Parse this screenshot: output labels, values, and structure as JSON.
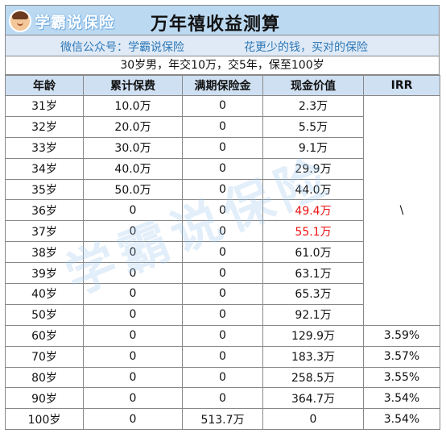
{
  "header": {
    "logo_text": "学霸说保险",
    "title": "万年禧收益测算",
    "subtitle_left": "微信公众号：学霸说保险",
    "subtitle_right": "花更少的钱，买对的保险",
    "conditions": "30岁男，年交10万，交5年，保至100岁"
  },
  "table": {
    "headers": [
      "年龄",
      "累计保费",
      "满期保险金",
      "现金价值",
      "IRR"
    ],
    "irr_merged_note": "\\",
    "rows": [
      {
        "age": "31岁",
        "premium": "10.0万",
        "maturity": "0",
        "cash": "2.3万",
        "cash_highlight": false
      },
      {
        "age": "32岁",
        "premium": "20.0万",
        "maturity": "0",
        "cash": "5.5万",
        "cash_highlight": false
      },
      {
        "age": "33岁",
        "premium": "30.0万",
        "maturity": "0",
        "cash": "9.1万",
        "cash_highlight": false
      },
      {
        "age": "34岁",
        "premium": "40.0万",
        "maturity": "0",
        "cash": "29.9万",
        "cash_highlight": false
      },
      {
        "age": "35岁",
        "premium": "50.0万",
        "maturity": "0",
        "cash": "44.0万",
        "cash_highlight": false
      },
      {
        "age": "36岁",
        "premium": "0",
        "maturity": "0",
        "cash": "49.4万",
        "cash_highlight": true
      },
      {
        "age": "37岁",
        "premium": "0",
        "maturity": "0",
        "cash": "55.1万",
        "cash_highlight": true
      },
      {
        "age": "38岁",
        "premium": "0",
        "maturity": "0",
        "cash": "61.0万",
        "cash_highlight": false
      },
      {
        "age": "39岁",
        "premium": "0",
        "maturity": "0",
        "cash": "63.1万",
        "cash_highlight": false
      },
      {
        "age": "40岁",
        "premium": "0",
        "maturity": "0",
        "cash": "65.3万",
        "cash_highlight": false
      },
      {
        "age": "50岁",
        "premium": "0",
        "maturity": "0",
        "cash": "92.1万",
        "cash_highlight": false
      },
      {
        "age": "60岁",
        "premium": "0",
        "maturity": "0",
        "cash": "129.9万",
        "irr": "3.59%",
        "cash_highlight": false
      },
      {
        "age": "70岁",
        "premium": "0",
        "maturity": "0",
        "cash": "183.3万",
        "irr": "3.57%",
        "cash_highlight": false
      },
      {
        "age": "80岁",
        "premium": "0",
        "maturity": "0",
        "cash": "258.5万",
        "irr": "3.55%",
        "cash_highlight": false
      },
      {
        "age": "90岁",
        "premium": "0",
        "maturity": "0",
        "cash": "364.7万",
        "irr": "3.54%",
        "cash_highlight": false
      },
      {
        "age": "100岁",
        "premium": "0",
        "maturity": "513.7万",
        "cash": "0",
        "irr": "3.54%",
        "cash_highlight": false
      }
    ]
  },
  "watermark": "学霸说保险",
  "colors": {
    "title_bg": "#bcd9f2",
    "subtitle_text": "#2e78b8",
    "highlight": "#ee1111"
  }
}
